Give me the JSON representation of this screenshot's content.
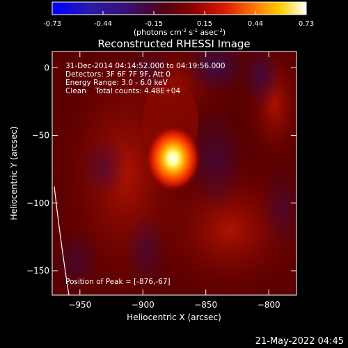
{
  "colorbar": {
    "ticks": [
      "-0.73",
      "-0.44",
      "-0.15",
      "0.15",
      "0.44",
      "0.73"
    ],
    "units_main": "(photons cm",
    "units_exp1": "-2",
    "units_mid": " s",
    "units_exp2": "-1",
    "units_tail": " asec",
    "units_exp3": "-2",
    "units_close": ")"
  },
  "chart_data": {
    "type": "heatmap",
    "title": "Reconstructed RHESSI Image",
    "xlabel": "Heliocentric X (arcsec)",
    "ylabel": "Heliocentric Y (arcsec)",
    "xlim": [
      -972,
      -778
    ],
    "ylim": [
      -168,
      12
    ],
    "x_ticks": [
      -950,
      -900,
      -850,
      -800
    ],
    "y_ticks": [
      0,
      -50,
      -100,
      -150
    ],
    "color_range": [
      -0.73,
      0.73
    ],
    "peak": {
      "x": -876,
      "y": -67,
      "value": 0.73
    },
    "annotations": [
      "31-Dec-2014 04:14:52.000 to 04:19:56.000",
      "Detectors: 3F 6F 7F 9F, Att 0",
      "Energy Range: 3.0 - 6.0 keV",
      "Clean    Total counts: 4.48E+04"
    ],
    "peak_label": "Position of Peak = [-876,-67]"
  },
  "footer": {
    "date": "21-May-2022 04:45"
  }
}
